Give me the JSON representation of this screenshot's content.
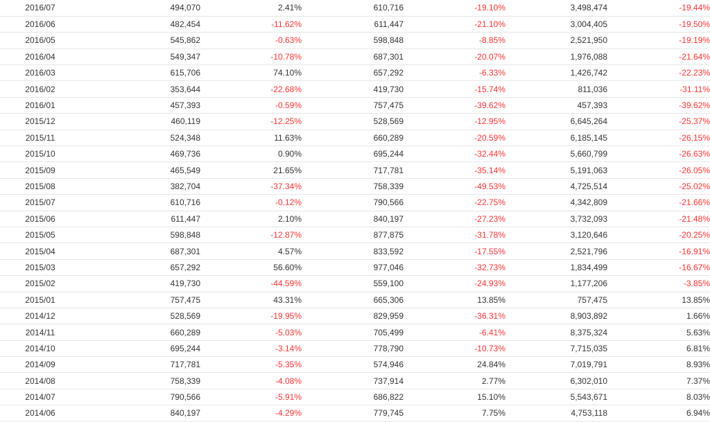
{
  "colors": {
    "negative": "#ff3333",
    "positive": "#333333"
  },
  "rows": [
    {
      "month": "2016/07",
      "v1": "494,070",
      "p1": "2.41%",
      "v2": "610,716",
      "p2": "-19.10%",
      "v3": "3,498,474",
      "p3": "-19.44%"
    },
    {
      "month": "2016/06",
      "v1": "482,454",
      "p1": "-11.62%",
      "v2": "611,447",
      "p2": "-21.10%",
      "v3": "3,004,405",
      "p3": "-19.50%"
    },
    {
      "month": "2016/05",
      "v1": "545,862",
      "p1": "-0.63%",
      "v2": "598,848",
      "p2": "-8.85%",
      "v3": "2,521,950",
      "p3": "-19.19%"
    },
    {
      "month": "2016/04",
      "v1": "549,347",
      "p1": "-10.78%",
      "v2": "687,301",
      "p2": "-20.07%",
      "v3": "1,976,088",
      "p3": "-21.64%"
    },
    {
      "month": "2016/03",
      "v1": "615,706",
      "p1": "74.10%",
      "v2": "657,292",
      "p2": "-6.33%",
      "v3": "1,426,742",
      "p3": "-22.23%"
    },
    {
      "month": "2016/02",
      "v1": "353,644",
      "p1": "-22.68%",
      "v2": "419,730",
      "p2": "-15.74%",
      "v3": "811,036",
      "p3": "-31.11%"
    },
    {
      "month": "2016/01",
      "v1": "457,393",
      "p1": "-0.59%",
      "v2": "757,475",
      "p2": "-39.62%",
      "v3": "457,393",
      "p3": "-39.62%"
    },
    {
      "month": "2015/12",
      "v1": "460,119",
      "p1": "-12.25%",
      "v2": "528,569",
      "p2": "-12.95%",
      "v3": "6,645,264",
      "p3": "-25.37%"
    },
    {
      "month": "2015/11",
      "v1": "524,348",
      "p1": "11.63%",
      "v2": "660,289",
      "p2": "-20.59%",
      "v3": "6,185,145",
      "p3": "-26.15%"
    },
    {
      "month": "2015/10",
      "v1": "469,736",
      "p1": "0.90%",
      "v2": "695,244",
      "p2": "-32.44%",
      "v3": "5,660,799",
      "p3": "-26.63%"
    },
    {
      "month": "2015/09",
      "v1": "465,549",
      "p1": "21.65%",
      "v2": "717,781",
      "p2": "-35.14%",
      "v3": "5,191,063",
      "p3": "-26.05%"
    },
    {
      "month": "2015/08",
      "v1": "382,704",
      "p1": "-37.34%",
      "v2": "758,339",
      "p2": "-49.53%",
      "v3": "4,725,514",
      "p3": "-25.02%"
    },
    {
      "month": "2015/07",
      "v1": "610,716",
      "p1": "-0.12%",
      "v2": "790,566",
      "p2": "-22.75%",
      "v3": "4,342,809",
      "p3": "-21.66%"
    },
    {
      "month": "2015/06",
      "v1": "611,447",
      "p1": "2.10%",
      "v2": "840,197",
      "p2": "-27.23%",
      "v3": "3,732,093",
      "p3": "-21.48%"
    },
    {
      "month": "2015/05",
      "v1": "598,848",
      "p1": "-12.87%",
      "v2": "877,875",
      "p2": "-31.78%",
      "v3": "3,120,646",
      "p3": "-20.25%"
    },
    {
      "month": "2015/04",
      "v1": "687,301",
      "p1": "4.57%",
      "v2": "833,592",
      "p2": "-17.55%",
      "v3": "2,521,796",
      "p3": "-16.91%"
    },
    {
      "month": "2015/03",
      "v1": "657,292",
      "p1": "56.60%",
      "v2": "977,046",
      "p2": "-32.73%",
      "v3": "1,834,499",
      "p3": "-16.67%"
    },
    {
      "month": "2015/02",
      "v1": "419,730",
      "p1": "-44.59%",
      "v2": "559,100",
      "p2": "-24.93%",
      "v3": "1,177,206",
      "p3": "-3.85%"
    },
    {
      "month": "2015/01",
      "v1": "757,475",
      "p1": "43.31%",
      "v2": "665,306",
      "p2": "13.85%",
      "v3": "757,475",
      "p3": "13.85%"
    },
    {
      "month": "2014/12",
      "v1": "528,569",
      "p1": "-19.95%",
      "v2": "829,959",
      "p2": "-36.31%",
      "v3": "8,903,892",
      "p3": "1.66%"
    },
    {
      "month": "2014/11",
      "v1": "660,289",
      "p1": "-5.03%",
      "v2": "705,499",
      "p2": "-6.41%",
      "v3": "8,375,324",
      "p3": "5.63%"
    },
    {
      "month": "2014/10",
      "v1": "695,244",
      "p1": "-3.14%",
      "v2": "778,790",
      "p2": "-10.73%",
      "v3": "7,715,035",
      "p3": "6.81%"
    },
    {
      "month": "2014/09",
      "v1": "717,781",
      "p1": "-5.35%",
      "v2": "574,946",
      "p2": "24.84%",
      "v3": "7,019,791",
      "p3": "8.93%"
    },
    {
      "month": "2014/08",
      "v1": "758,339",
      "p1": "-4.08%",
      "v2": "737,914",
      "p2": "2.77%",
      "v3": "6,302,010",
      "p3": "7.37%"
    },
    {
      "month": "2014/07",
      "v1": "790,566",
      "p1": "-5.91%",
      "v2": "686,822",
      "p2": "15.10%",
      "v3": "5,543,671",
      "p3": "8.03%"
    },
    {
      "month": "2014/06",
      "v1": "840,197",
      "p1": "-4.29%",
      "v2": "779,745",
      "p2": "7.75%",
      "v3": "4,753,118",
      "p3": "6.94%"
    }
  ]
}
